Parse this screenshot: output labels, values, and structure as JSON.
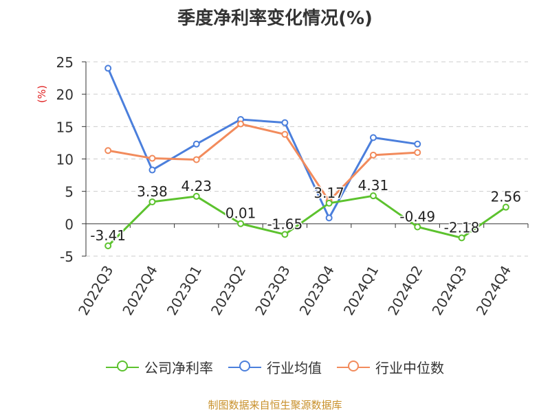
{
  "chart_data": {
    "type": "line",
    "title": "季度净利率变化情况(%)",
    "ylabel": "(%)",
    "categories": [
      "2022Q3",
      "2022Q4",
      "2023Q1",
      "2023Q2",
      "2023Q3",
      "2023Q4",
      "2024Q1",
      "2024Q2",
      "2024Q3",
      "2024Q4"
    ],
    "ylim": [
      -5,
      25
    ],
    "yticks": [
      -5,
      0,
      5,
      10,
      15,
      20,
      25
    ],
    "grid": true,
    "legend_position": "bottom",
    "series": [
      {
        "name": "公司净利率",
        "color": "#5cc22e",
        "values": [
          -3.41,
          3.38,
          4.23,
          0.01,
          -1.65,
          3.17,
          4.31,
          -0.49,
          -2.18,
          2.56
        ],
        "labels": [
          "-3.41",
          "3.38",
          "4.23",
          "0.01",
          "-1.65",
          "3.17",
          "4.31",
          "-0.49",
          "-2.18",
          "2.56"
        ]
      },
      {
        "name": "行业均值",
        "color": "#4b7fdc",
        "values": [
          24.0,
          8.3,
          12.3,
          16.1,
          15.6,
          0.9,
          13.3,
          12.3,
          null,
          null
        ]
      },
      {
        "name": "行业中位数",
        "color": "#f28b5c",
        "values": [
          11.3,
          10.1,
          9.9,
          15.4,
          13.8,
          3.5,
          10.6,
          11.0,
          null,
          null
        ]
      }
    ]
  },
  "footer": {
    "source": "制图数据来自恒生聚源数据库"
  }
}
